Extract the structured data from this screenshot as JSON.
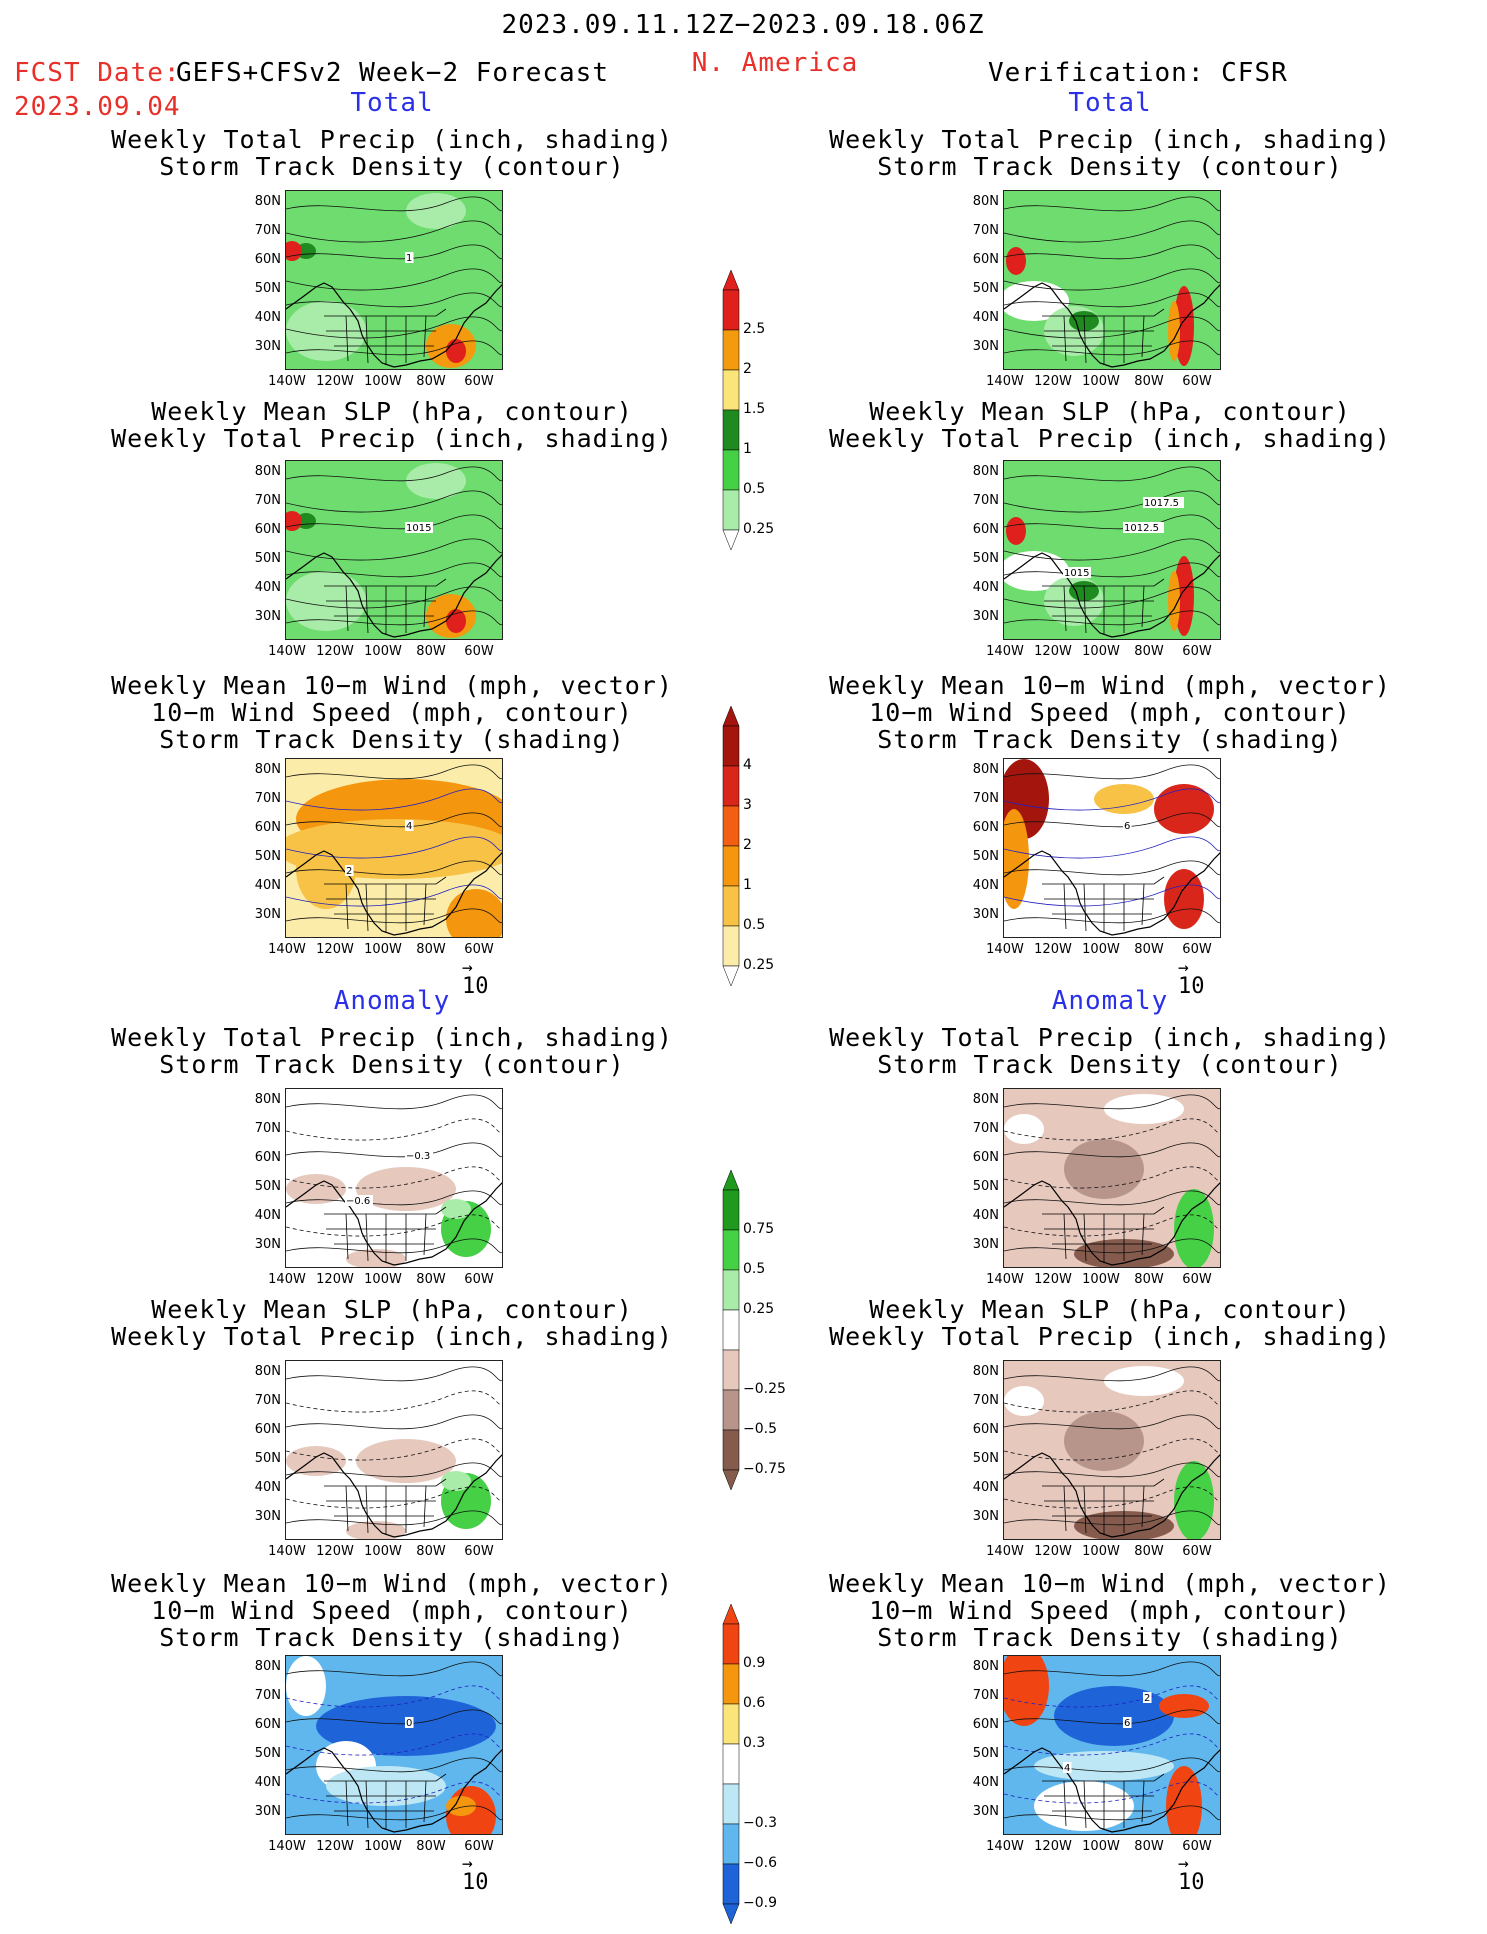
{
  "header": {
    "date_range": "2023.09.11.12Z−2023.09.18.06Z",
    "region": "N. America",
    "fcst_label": "FCST Date:",
    "fcst_model": "GEFS+CFSv2 Week−2 Forecast",
    "fcst_date": "2023.09.04",
    "verification": "Verification: CFSR"
  },
  "section_labels": {
    "total": "Total",
    "anomaly": "Anomaly"
  },
  "panel_titles": {
    "precip_track": [
      "Weekly Total Precip (inch, shading)",
      "Storm Track Density (contour)"
    ],
    "slp_precip": [
      "Weekly Mean SLP (hPa, contour)",
      "Weekly Total Precip (inch, shading)"
    ],
    "wind_track": [
      "Weekly Mean 10−m Wind (mph, vector)",
      "10−m Wind Speed (mph, contour)",
      "Storm Track Density (shading)"
    ]
  },
  "axis": {
    "lat_ticks": [
      "80N",
      "70N",
      "60N",
      "50N",
      "40N",
      "30N"
    ],
    "lon_ticks": [
      "140W",
      "120W",
      "100W",
      "80W",
      "60W"
    ]
  },
  "vector_ref": "10",
  "colorbars": {
    "precip_total": {
      "labels": [
        "2.5",
        "2",
        "1.5",
        "1",
        "0.5",
        "0.25"
      ],
      "colors": [
        "#e0201c",
        "#f39a0f",
        "#fbe479",
        "#1f8a1f",
        "#45d045",
        "#a9eca9"
      ]
    },
    "track_total": {
      "labels": [
        "4",
        "3",
        "2",
        "1",
        "0.5",
        "0.25"
      ],
      "colors": [
        "#a4150e",
        "#d9261a",
        "#f25e13",
        "#f5960f",
        "#f7c245",
        "#fbeda9"
      ]
    },
    "precip_anom": {
      "labels": [
        "0.75",
        "0.5",
        "0.25",
        "−0.25",
        "−0.5",
        "−0.75"
      ],
      "colors": [
        "#1f9a1f",
        "#45d045",
        "#a9eca9",
        "#ffffff",
        "#e6c8bd",
        "#b8958a",
        "#855b4e"
      ]
    },
    "track_anom": {
      "labels": [
        "0.9",
        "0.6",
        "0.3",
        "−0.3",
        "−0.6",
        "−0.9"
      ],
      "colors": [
        "#f04412",
        "#f5960f",
        "#fbe479",
        "#ffffff",
        "#bde7f5",
        "#5fb7ee",
        "#1e64d8"
      ]
    }
  },
  "contour_labels": {
    "fcst_precip_total": [
      "1"
    ],
    "fcst_slp_total": [
      "1015"
    ],
    "obs_slp_total": [
      "1012.5",
      "1015",
      "1017.5"
    ],
    "fcst_wind_total": [
      "4",
      "2"
    ],
    "obs_wind_total": [
      "6"
    ],
    "fcst_precip_anom": [
      "−0.3",
      "−0.6"
    ],
    "fcst_wind_anom": [
      "0"
    ],
    "obs_wind_anom": [
      "6",
      "4",
      "2"
    ]
  }
}
